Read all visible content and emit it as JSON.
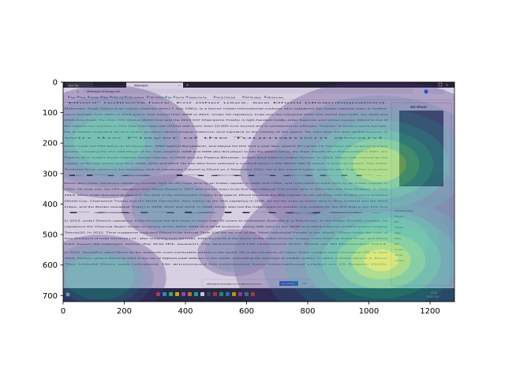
{
  "chart_data": {
    "type": "heatmap",
    "title": "",
    "xlabel": "",
    "ylabel": "",
    "xlim": [
      0,
      1280
    ],
    "ylim": [
      720,
      0
    ],
    "x_ticks": [
      "0",
      "200",
      "400",
      "600",
      "800",
      "1000",
      "1200"
    ],
    "y_ticks": [
      "0",
      "100",
      "200",
      "300",
      "400",
      "500",
      "600",
      "700"
    ],
    "colormap": "viridis",
    "hotspots": [
      {
        "x": 1035,
        "y": 270,
        "level": 0.9
      },
      {
        "x": 1040,
        "y": 585,
        "level": 1.0
      },
      {
        "x": 1080,
        "y": 520,
        "level": 0.6
      },
      {
        "x": 150,
        "y": 195,
        "level": 0.6
      },
      {
        "x": 120,
        "y": 640,
        "level": 0.45
      },
      {
        "x": 360,
        "y": 410,
        "level": 0.35
      },
      {
        "x": 700,
        "y": 300,
        "level": 0.25
      },
      {
        "x": 560,
        "y": 560,
        "level": 0.25
      }
    ]
  },
  "screenshot": {
    "tab_1": "New Tab",
    "tab_2": "Wikianalysis",
    "address": "wikianalysis.herokuapp.com",
    "bookmarks": [
      "Apps",
      "Gmail",
      "YouTube",
      "Maps",
      "HTML, CSS",
      "HTML JavaScript",
      "TASK DETAILS",
      "Mos",
      "New Tab",
      "Shadow of the Tom...",
      "Far Cry 5 Free Dow...",
      "PHP File Upload",
      "(48) How to learn..."
    ],
    "infobox_title": "MS Dhoni",
    "body_lines": [
      "\"Dhoni\" redirects here. For other uses, see Dhoni (disambiguation).",
      "Mahendra Singh Dhoni is an Indian cricketer (born 7 July 1981), is a former Indian international cricketer who captained the Indian national team in limited-",
      "overs formats from 2007 to 2016 and in Test cricket from 2008 to 2014. Under his captaincy, India won the inaugural 2007 ICC World Twenty20, the 2010 and",
      "2016 Asia Cups, the 2011 ICC Cricket World Cup and the 2013 ICC Champions Trophy. A right-handed middle-order batsman and wicket-keeper, Dhoni is one of",
      "the highest run scorers in One Day Internationals (ODIs) with more than 10,000 runs scored and is considered an effective \"finisher\" in limited-overs formats.",
      "He is widely regarded as one of the greatest wicket-keeper batsmen and captains in the history of the game. He was also the first wicket-keeper to",
      "win the Player of the Tournament award.",
      "Dhoni made his ODI debut on 23 December, 2004 against Bangladesh, and played his first Test a year later against Sri Lanka. He has been the recipient of many",
      "awards, including the ICC ODI Player of the Year award in 2008 and 2009 (the first player to win the award twice), the Rajiv Gandhi Khel Ratna award in 2007, the",
      "Padma Shri, India's fourth highest civilian honour, in 2009 and the Padma Bhushan, India's third highest civilian honour, in 2018. Dhoni was named as the",
      "captain of the ICC World Test XI in 2009, 2010 and 2013. He has also been selected a record 8 times in ICC World ODI XI teams, 5 times as captain. The Indian",
      "Territorial Army conferred the honorary rank of Lieutenant Colonel to Dhoni on 1 November 2011. He is the second Indian cricketer after Kapil Dev to receive",
      "the honour.",
      "Dhoni also holds numerous captaincy records such as the most wins by an Indian captain in ODIs and T20Is, and most back-to-back wins by an Indian captain in",
      "ODIs. He took over the ODI captaincy from Rahul Dravid in 2007 and led the team to its first-ever bilateral ODI series wins in Sri Lanka and New Zealand. In June",
      "2013, when India defeated England in the final of the Champions Trophy in England, Dhoni became the first captain to win all three ICC limited-overs trophies",
      "(World Cup, Champions Trophy and the World Twenty20). After taking up the Test captaincy in 2008, he led the team to series wins in New Zealand and the West",
      "Indies, and the Border-Gavaskar Trophy in 2008, 2010 and 2013. In 2009, Dhoni also led the Indian team to number one position for the first time in the ICC Test",
      "rankings.",
      "In 2013, under Dhoni's captaincy, India became the first team in more than 40 years to whitewash Australia in a Test series. In the Indian Premier League, he",
      "captained the Chennai Super Kings to victory at the 2010, 2011 and 2018 seasons, along with wins in the 2010 and 2014 editions of Champions League",
      "Twenty20. In 2011, Time magazine included Dhoni in its annual Time 100 list as one of the \"Most Influential People in the World.\" Dhoni holds the post of",
      "Vice-President of India Cements Ltd., after resigning from Air India. India Cements is the owner of the Indian Premier League team Chennai Super Kings, and Dhoni",
      "has been its captain since the first IPL season. He announced his retirement from Tests on 30 December 2014.",
      "In 2016, SportsPro rated Dhoni as the sixteenth most marketable athlete in the world. He is the co-owner of Indian Super League team Chennaiyin FC. In June",
      "2015, Forbes ranked Dhoni at 23rd in the list of highest paid athletes in the world, estimating his earnings at US$31 million. In 2016, a biopic titled M.S. Dhoni:",
      "The Untold Story was released. He announced his retirement from international cricket on 15 August 2020."
    ],
    "side_labels": [
      "Personal information",
      "Full name",
      "Born",
      "Nickname",
      "Height",
      "Batting",
      "Role",
      "Test debut",
      "Last Test",
      "ODI debut"
    ],
    "share_bar_text": "wikianalysis.herokuapp.com is sharing your screen.",
    "share_stop": "Stop sharing",
    "share_hide": "Hide",
    "clock_time": "11:26",
    "clock_date": "15-11-2020"
  }
}
